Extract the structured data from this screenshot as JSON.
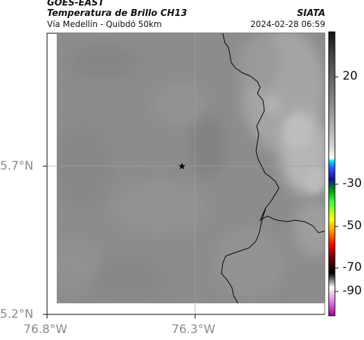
{
  "header": {
    "satellite": "GOES-EAST",
    "product": "Temperatura de Brillo CH13",
    "route": "Vía Medellín - Quibdó 50km",
    "brand": "SIATA",
    "datetime": "2024-02-28 06:59"
  },
  "map": {
    "lat_labels": [
      "5.7°N",
      "5.2°N"
    ],
    "lon_labels": [
      "76.8°W",
      "76.3°W"
    ],
    "marker_icon": "star-icon",
    "background_color": "#8c8c8c"
  },
  "colorbar": {
    "tick_labels": [
      "20",
      "-30",
      "-50",
      "-70",
      "-90"
    ]
  }
}
